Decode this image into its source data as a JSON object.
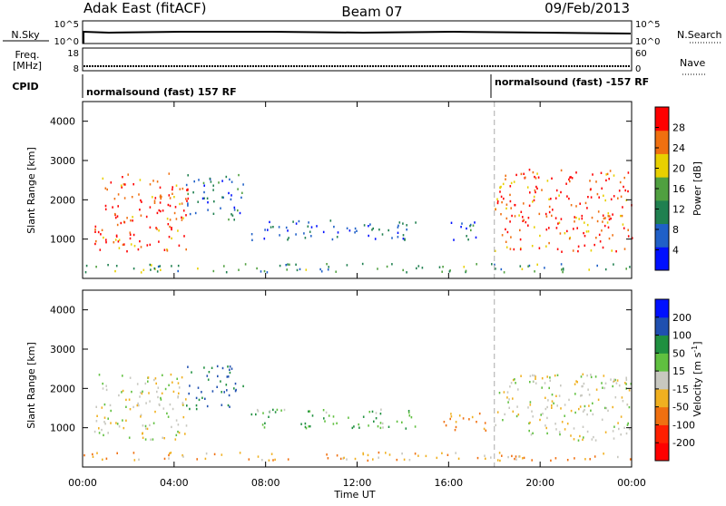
{
  "header": {
    "radar": "Adak East (fitACF)",
    "beam": "Beam 07",
    "date": "09/Feb/2013"
  },
  "strip": {
    "nsky_label": "N.Sky",
    "nsky_ticks": [
      "10^5",
      "10^0"
    ],
    "nsearch_label": "N.Search",
    "nsearch_ticks": [
      "10^5",
      "10^0"
    ],
    "freq_label_1": "Freq.",
    "freq_label_2": "[MHz]",
    "freq_ticks": [
      "18",
      "8"
    ],
    "nave_label": "Nave",
    "nave_ticks": [
      "60",
      "0"
    ],
    "cpid_label": "CPID",
    "cpid_segments": [
      "normalsound (fast) 157 RF",
      "normalsound (fast) -157 RF"
    ]
  },
  "axes": {
    "xlabel": "Time UT",
    "xticks": [
      "00:00",
      "04:00",
      "08:00",
      "12:00",
      "16:00",
      "20:00",
      "00:00"
    ],
    "ylabel": "Slant Range [km]",
    "yticks": [
      "1000",
      "2000",
      "3000",
      "4000"
    ]
  },
  "power_scale": {
    "label": "Power [dB]",
    "ticks": [
      "4",
      "8",
      "12",
      "16",
      "20",
      "24",
      "28"
    ],
    "colors": [
      "#0010ff",
      "#2060c8",
      "#208050",
      "#50a040",
      "#e8d000",
      "#f07010",
      "#ff0000"
    ]
  },
  "velocity_scale": {
    "label": "Velocity [m s",
    "label_sup": "-1",
    "label_end": "]",
    "ticks": [
      "200",
      "100",
      "50",
      "15",
      "-15",
      "-50",
      "-100",
      "-200"
    ],
    "colors": [
      "#0010ff",
      "#2050b0",
      "#209040",
      "#60c040",
      "#c8c8c0",
      "#f0b020",
      "#f07010",
      "#ff2000",
      "#ff0000"
    ]
  },
  "chart_data": [
    {
      "type": "heatmap",
      "title": "Power",
      "xlabel": "Time UT",
      "ylabel": "Slant Range [km]",
      "xlim": [
        "00:00",
        "24:00"
      ],
      "ylim": [
        0,
        4500
      ],
      "colorbar": {
        "label": "Power [dB]",
        "range": [
          0,
          30
        ]
      },
      "regions": [
        {
          "t": [
            0.5,
            4.6
          ],
          "range_km": [
            700,
            2700
          ],
          "value_db": 26
        },
        {
          "t": [
            4.5,
            7.0
          ],
          "range_km": [
            1500,
            2700
          ],
          "value_db": 10
        },
        {
          "t": [
            7.3,
            14.6
          ],
          "range_km": [
            1000,
            1500
          ],
          "value_db": 8
        },
        {
          "t": [
            16.0,
            17.6
          ],
          "range_km": [
            1000,
            1500
          ],
          "value_db": 10
        },
        {
          "t": [
            18.0,
            24.0
          ],
          "range_km": [
            700,
            2800
          ],
          "value_db": 26
        },
        {
          "t": [
            0.0,
            24.0
          ],
          "range_km": [
            180,
            400
          ],
          "value_db": 14
        }
      ]
    },
    {
      "type": "heatmap",
      "title": "Velocity",
      "xlabel": "Time UT",
      "ylabel": "Slant Range [km]",
      "xlim": [
        "00:00",
        "24:00"
      ],
      "ylim": [
        0,
        4500
      ],
      "colorbar": {
        "label": "Velocity [m s-1]",
        "range": [
          -250,
          250
        ]
      },
      "regions": [
        {
          "t": [
            0.5,
            4.6
          ],
          "range_km": [
            700,
            2400
          ],
          "value_ms": 0
        },
        {
          "t": [
            4.5,
            7.0
          ],
          "range_km": [
            1500,
            2600
          ],
          "value_ms": 100
        },
        {
          "t": [
            7.3,
            14.6
          ],
          "range_km": [
            1000,
            1500
          ],
          "value_ms": 40
        },
        {
          "t": [
            15.6,
            17.6
          ],
          "range_km": [
            900,
            1400
          ],
          "value_ms": -60
        },
        {
          "t": [
            18.0,
            24.0
          ],
          "range_km": [
            700,
            2400
          ],
          "value_ms": 0
        },
        {
          "t": [
            0.0,
            24.0
          ],
          "range_km": [
            180,
            400
          ],
          "value_ms": -40
        }
      ]
    }
  ]
}
